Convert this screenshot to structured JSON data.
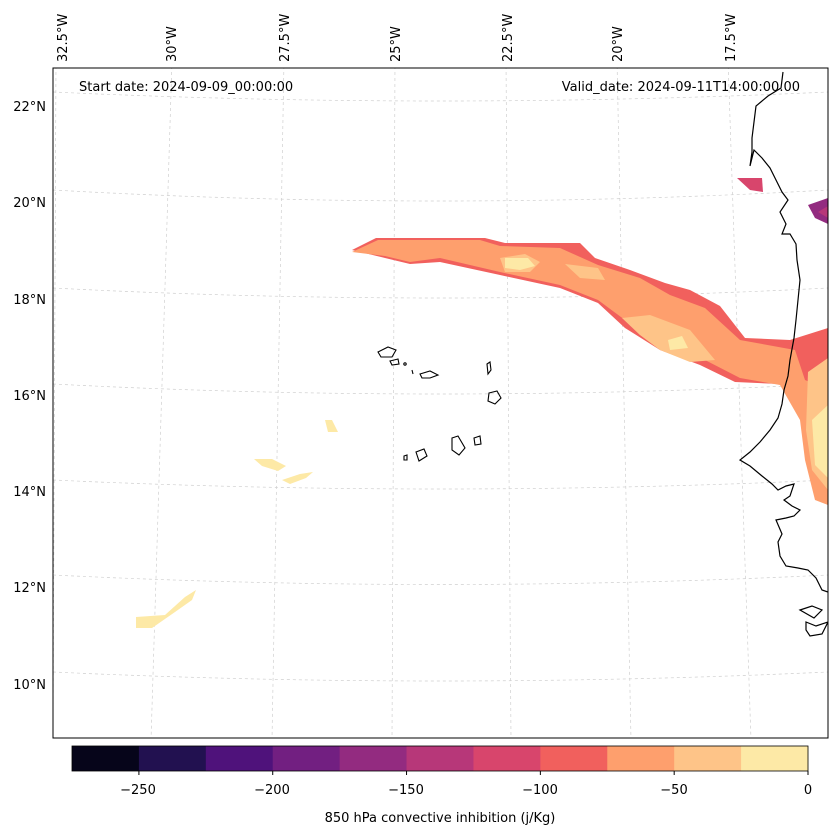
{
  "map": {
    "start_date_label": "Start date: 2024-09-09_00:00:00",
    "valid_date_label": "Valid_date: 2024-09-11T14:00:00.00",
    "lon_labels": [
      "32.5°W",
      "30°W",
      "27.5°W",
      "25°W",
      "22.5°W",
      "20°W",
      "17.5°W"
    ],
    "lat_labels": [
      "22°N",
      "20°N",
      "18°N",
      "16°N",
      "14°N",
      "12°N",
      "10°N"
    ],
    "field": "850 hPa convective inhibition",
    "features": [
      "west-african-coastline",
      "cape-verde-islands",
      "cin-contours"
    ]
  },
  "colorbar": {
    "label": "850 hPa convective inhibition (j/Kg)",
    "tick_labels": [
      "−250",
      "−200",
      "−150",
      "−100",
      "−50",
      "0"
    ],
    "levels": [
      -275,
      -250,
      -225,
      -200,
      -175,
      -150,
      -125,
      -100,
      -75,
      -50,
      -25,
      0
    ],
    "colors": [
      "#06051a",
      "#221150",
      "#4f127b",
      "#721f81",
      "#932b80",
      "#b73779",
      "#d8456c",
      "#f1605d",
      "#fe9f6d",
      "#fec488",
      "#fde9a6"
    ]
  }
}
